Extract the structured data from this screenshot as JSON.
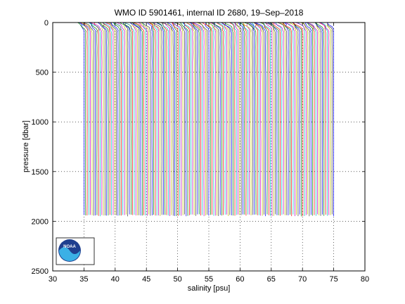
{
  "chart_data": {
    "type": "line",
    "title": "WMO ID 5901461, internal ID 2680, 19–Sep–2018",
    "xlabel": "salinity [psu]",
    "ylabel": "pressure [dbar]",
    "xlim": [
      30,
      80
    ],
    "ylim": [
      0,
      2500
    ],
    "y_reversed": true,
    "x_ticks": [
      30,
      35,
      40,
      45,
      50,
      55,
      60,
      65,
      70,
      75,
      80
    ],
    "y_ticks": [
      0,
      500,
      1000,
      1500,
      2000,
      2500
    ],
    "grid": true,
    "grid_style": "dotted",
    "series_summary": {
      "description_values": "vertical salinity profiles from surface to ~1950 dbar, offset successively",
      "x_start": 35.0,
      "x_end": 75.0,
      "profile_count": 155,
      "surface_salinity_min_offset": -1.7,
      "deep_pressure_max": 1950,
      "colors": [
        "#0000ff",
        "#008000",
        "#ff0000",
        "#00bfbf",
        "#bf00bf",
        "#bfbf00",
        "#404040"
      ]
    }
  },
  "logo": {
    "name": "noaa-logo",
    "text": "NOAA"
  }
}
